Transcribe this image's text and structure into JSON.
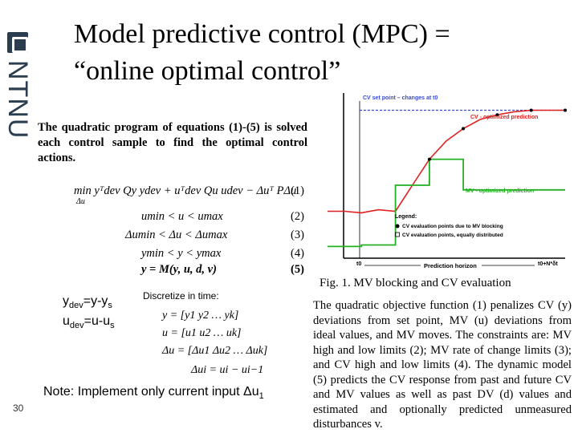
{
  "sidebar": {
    "logo_text": "NTNU",
    "page_number": "30"
  },
  "title": {
    "line1": "Model predictive control (MPC) =",
    "line2": "“online optimal control”"
  },
  "panel_left": {
    "text": "The quadratic program of equations (1)-(5) is solved each control sample to find the optimal control actions.",
    "equations": [
      {
        "expr": "min yᵀdev Qy ydev + uᵀdev Qu udev − Δuᵀ PΔu",
        "sub": "Δu",
        "num": "(1)"
      },
      {
        "expr": "umin < u < umax",
        "num": "(2)"
      },
      {
        "expr": "Δumin < Δu < Δumax",
        "num": "(3)"
      },
      {
        "expr": "ymin < y < ymax",
        "num": "(4)"
      },
      {
        "expr": "y = M(y, u, d, v)",
        "num": "(5)"
      }
    ]
  },
  "chart_data": {
    "type": "line",
    "title": "",
    "xlabel": "Prediction horizon",
    "ylabel": "",
    "x_ticks": [
      "t0",
      "t0+N*δt"
    ],
    "annotations": [
      "CV set point – changes at t0",
      "CV - optimized prediction",
      "MV - optimized prediction"
    ],
    "legend": {
      "title": "Legend:",
      "items": [
        "CV evaluation points due to MV blocking",
        "CV evaluation points, equally distributed"
      ],
      "placement": "bottom-right"
    },
    "series": [
      {
        "values": [
          0.28,
          0.28,
          0.27,
          0.29,
          0.28,
          0.45,
          0.62,
          0.74,
          0.82,
          0.88,
          0.91,
          0.93,
          0.94,
          0.94,
          0.94
        ]
      },
      {
        "values": [
          0.05,
          0.05,
          0.06,
          0.06,
          0.45,
          0.45,
          0.62,
          0.62,
          0.42,
          0.42,
          0.42,
          0.42,
          0.42,
          0.42,
          0.42
        ]
      }
    ],
    "setpoint": 0.94,
    "colors": {
      "cv": "#e02020",
      "mv": "#22b022",
      "setpoint": "#3a4bd0"
    }
  },
  "fig_caption": "Fig. 1. MV blocking and CV evaluation",
  "defs": {
    "y_main": "y",
    "y_sub": "dev",
    "y_rest": "=y-y",
    "y_sub2": "s",
    "u_main": "u",
    "u_sub": "dev",
    "u_rest": "=u-u",
    "u_sub2": "s"
  },
  "discretize": {
    "label": "Discretize in time:",
    "lines": [
      "y = [y1 y2 … yk]",
      "u = [u1 u2 … uk]",
      "Δu = [Δu1 Δu2 … Δuk]",
      "Δui = ui − ui−1"
    ]
  },
  "note": {
    "text": "Note: Implement only current input Δu",
    "sub": "1"
  },
  "paragraph": "The quadratic objective function (1) penalizes CV (y) deviations from set point, MV (u) deviations from ideal values, and MV moves. The constraints are: MV high and low limits (2); MV rate of change limits (3); and CV high and low limits (4). The dynamic model (5) predicts the CV response from past and future CV and MV values as well as past DV (d) values and estimated and optionally predicted unmeasured disturbances v."
}
